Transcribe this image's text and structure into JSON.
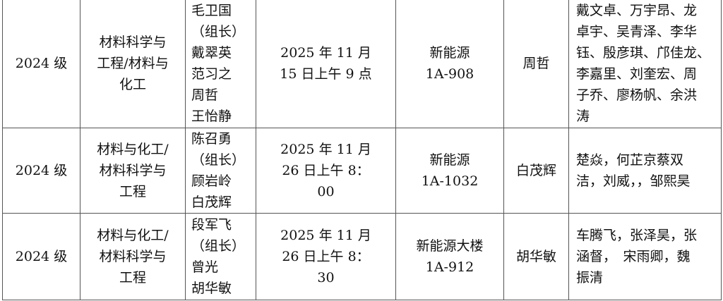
{
  "rows": [
    {
      "grade": "2024 级",
      "major": "材料科学与\n工程/材料与\n化工",
      "committee": "毛卫国\n（组长）\n戴翠英\n范习之\n周哲\n王怡静",
      "time": "2025 年 11 月\n15 日上午 9 点",
      "location": "新能源\n1A-908",
      "secretary": "周哲",
      "students": "戴文卓、万宇昂、龙\n卓宇、吴青泽、李华\n钰、殷彦琪、邝佳龙、\n李嘉里、刘奎宏、周\n子乔、廖杨帆、余洪\n涛"
    },
    {
      "grade": "2024 级",
      "major": "材料与化工/\n材料科学与\n工程",
      "committee": "陈召勇\n（组长）\n顾岩岭\n白茂辉",
      "time": "2025 年 11 月\n26 日上午 8：\n00",
      "location": "新能源\n1A-1032",
      "secretary": "白茂辉",
      "students": "楚焱，何芷京蔡双\n洁，刘威，，邹熙昊"
    },
    {
      "grade": "2024 级",
      "major": "材料与化工/\n材料科学与\n工程",
      "committee": "段军飞\n（组长）\n曾光\n胡华敏",
      "time": "2025 年 11 月\n26 日上午 8：\n30",
      "location": "新能源大楼\n1A-912",
      "secretary": "胡华敏",
      "students": "车腾飞，张泽昊，张\n涵督，　宋雨卿，魏\n振清"
    }
  ]
}
